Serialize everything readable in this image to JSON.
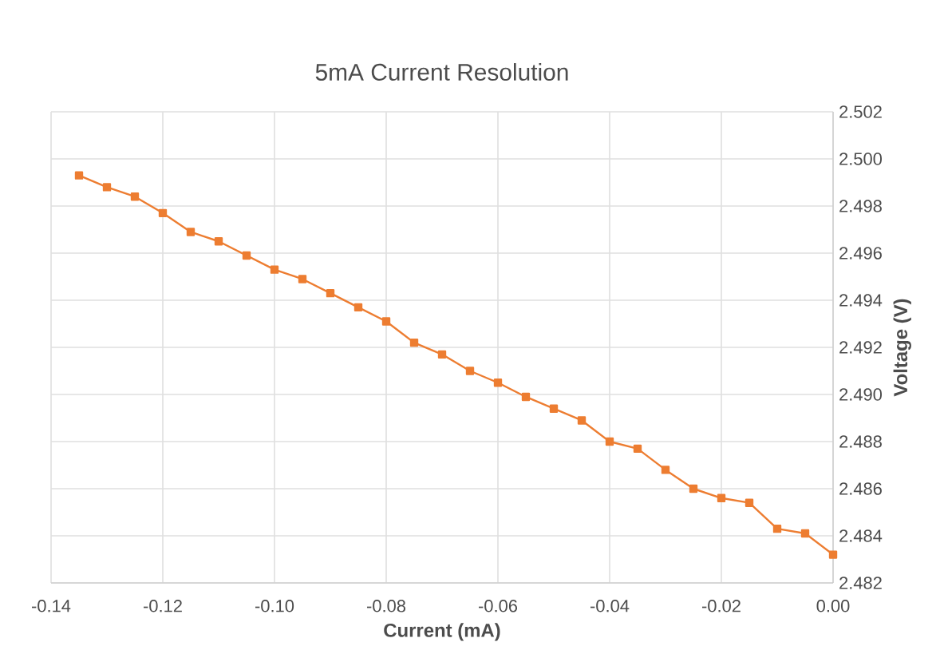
{
  "chart_data": {
    "type": "line",
    "title": "5mA Current Resolution",
    "xlabel": "Current (mA)",
    "ylabel": "Voltage (V)",
    "x": [
      -0.135,
      -0.13,
      -0.125,
      -0.12,
      -0.115,
      -0.11,
      -0.105,
      -0.1,
      -0.095,
      -0.09,
      -0.085,
      -0.08,
      -0.075,
      -0.07,
      -0.065,
      -0.06,
      -0.055,
      -0.05,
      -0.045,
      -0.04,
      -0.035,
      -0.03,
      -0.025,
      -0.02,
      -0.015,
      -0.01,
      -0.005,
      0.0
    ],
    "series": [
      {
        "color": "#ed7d31",
        "values": [
          2.4993,
          2.4988,
          2.4984,
          2.4977,
          2.4969,
          2.4965,
          2.4959,
          2.4953,
          2.4949,
          2.4943,
          2.4937,
          2.4931,
          2.4922,
          2.4917,
          2.491,
          2.4905,
          2.4899,
          2.4894,
          2.4889,
          2.488,
          2.4877,
          2.4868,
          2.486,
          2.4856,
          2.4854,
          2.4843,
          2.4841,
          2.4832
        ]
      }
    ],
    "xlim": [
      -0.14,
      0.0
    ],
    "xticks": [
      {
        "value": -0.14,
        "label": "-0.14"
      },
      {
        "value": -0.12,
        "label": "-0.12"
      },
      {
        "value": -0.1,
        "label": "-0.10"
      },
      {
        "value": -0.08,
        "label": "-0.08"
      },
      {
        "value": -0.06,
        "label": "-0.06"
      },
      {
        "value": -0.04,
        "label": "-0.04"
      },
      {
        "value": -0.02,
        "label": "-0.02"
      },
      {
        "value": 0.0,
        "label": "0.00"
      }
    ],
    "ylim": [
      2.482,
      2.502
    ],
    "yticks": [
      {
        "value": 2.482,
        "label": "2.482"
      },
      {
        "value": 2.484,
        "label": "2.484"
      },
      {
        "value": 2.486,
        "label": "2.486"
      },
      {
        "value": 2.488,
        "label": "2.488"
      },
      {
        "value": 2.49,
        "label": "2.490"
      },
      {
        "value": 2.492,
        "label": "2.492"
      },
      {
        "value": 2.494,
        "label": "2.494"
      },
      {
        "value": 2.496,
        "label": "2.496"
      },
      {
        "value": 2.498,
        "label": "2.498"
      },
      {
        "value": 2.5,
        "label": "2.500"
      },
      {
        "value": 2.502,
        "label": "2.502"
      }
    ],
    "grid": true,
    "marker": "square",
    "line_style": "solid"
  }
}
